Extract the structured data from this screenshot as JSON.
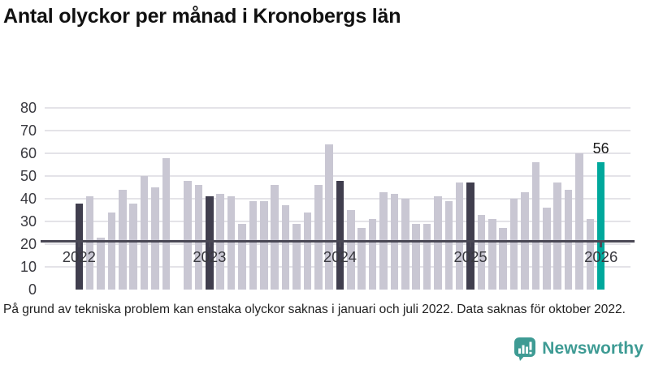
{
  "title": "Antal olyckor per månad i Kronobergs län",
  "footnote": "På grund av tekniska problem kan enstaka olyckor saknas i januari och juli 2022. Data saknas för oktober 2022.",
  "branding": {
    "name": "Newsworthy",
    "color": "#3e9b94",
    "icon": "newsworthy-chart-bubble-icon"
  },
  "chart_data": {
    "type": "bar",
    "title": "Antal olyckor per månad i Kronobergs län",
    "xlabel": "",
    "ylabel": "",
    "ylim": [
      0,
      80
    ],
    "y_ticks": [
      0,
      10,
      20,
      30,
      40,
      50,
      60,
      70,
      80
    ],
    "grid": "horizontal",
    "legend": "none",
    "x_tick_labels": [
      "2022",
      "2023",
      "2024",
      "2025",
      "2026"
    ],
    "x_tick_month_indexes": [
      0,
      12,
      24,
      36,
      48
    ],
    "months": [
      "2022-01",
      "2022-02",
      "2022-03",
      "2022-04",
      "2022-05",
      "2022-06",
      "2022-07",
      "2022-08",
      "2022-09",
      "2022-10",
      "2022-11",
      "2022-12",
      "2023-01",
      "2023-02",
      "2023-03",
      "2023-04",
      "2023-05",
      "2023-06",
      "2023-07",
      "2023-08",
      "2023-09",
      "2023-10",
      "2023-11",
      "2023-12",
      "2024-01",
      "2024-02",
      "2024-03",
      "2024-04",
      "2024-05",
      "2024-06",
      "2024-07",
      "2024-08",
      "2024-09",
      "2024-10",
      "2024-11",
      "2024-12",
      "2025-01",
      "2025-02",
      "2025-03",
      "2025-04",
      "2025-05",
      "2025-06",
      "2025-07",
      "2025-08",
      "2025-09",
      "2025-10",
      "2025-11",
      "2025-12",
      "2026-01"
    ],
    "series": [
      {
        "name": "Antal olyckor",
        "values": [
          38,
          41,
          23,
          34,
          44,
          38,
          50,
          45,
          58,
          null,
          48,
          46,
          41,
          42,
          41,
          29,
          39,
          39,
          46,
          37,
          29,
          34,
          46,
          64,
          48,
          35,
          27,
          31,
          43,
          42,
          40,
          29,
          29,
          41,
          39,
          47,
          47,
          33,
          31,
          27,
          40,
          43,
          56,
          36,
          47,
          44,
          60,
          31,
          56
        ]
      }
    ],
    "missing_months": [
      "2022-10"
    ],
    "annotations": [
      {
        "month": "2026-01",
        "value": 56,
        "label": "56"
      }
    ],
    "colors": {
      "january_bar": "#403e4e",
      "default_bar": "#c9c7d3",
      "latest_bar": "#00a89c",
      "grid_line": "#e4e3e8",
      "axis_line": "#4a4855",
      "tick_label": "#39393f"
    }
  }
}
